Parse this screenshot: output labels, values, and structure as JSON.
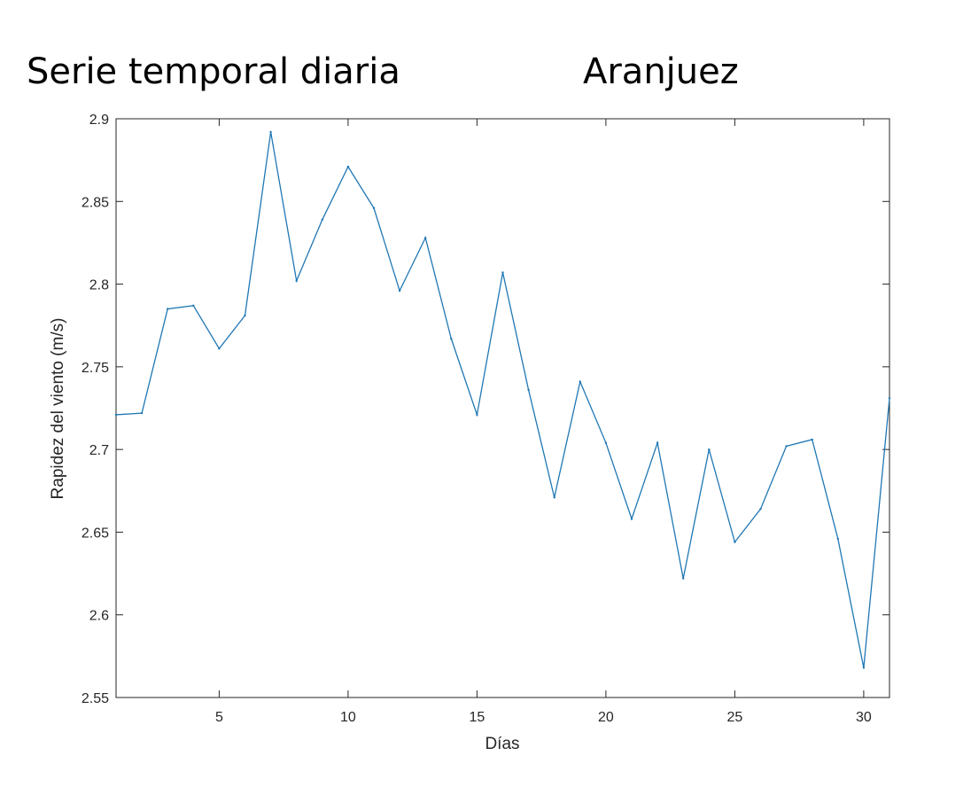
{
  "figure": {
    "title_left": "Serie temporal diaria",
    "title_right": "Aranjuez"
  },
  "colors": {
    "series": "#1f77b4",
    "axes": "#262626",
    "background": "#ffffff"
  },
  "chart_data": {
    "type": "line",
    "title": "Serie temporal diaria",
    "subtitle": "Aranjuez",
    "xlabel": "Días",
    "ylabel": "Rapidez del viento (m/s)",
    "xlim": [
      1,
      31
    ],
    "ylim": [
      2.55,
      2.9
    ],
    "xticks": [
      5,
      10,
      15,
      20,
      25,
      30
    ],
    "xtick_labels": [
      "5",
      "10",
      "15",
      "20",
      "25",
      "30"
    ],
    "yticks": [
      2.55,
      2.6,
      2.65,
      2.7,
      2.75,
      2.8,
      2.85,
      2.9
    ],
    "ytick_labels": [
      "2.55",
      "2.6",
      "2.65",
      "2.7",
      "2.75",
      "2.8",
      "2.85",
      "2.9"
    ],
    "grid": false,
    "box": true,
    "series": [
      {
        "x": [
          1,
          2,
          3,
          4,
          5,
          6,
          7,
          8,
          9,
          10,
          11,
          12,
          13,
          14,
          15,
          16,
          17,
          18,
          19,
          20,
          21,
          22,
          23,
          24,
          25,
          26,
          27,
          28,
          29,
          30,
          31
        ],
        "values": [
          2.721,
          2.722,
          2.785,
          2.787,
          2.761,
          2.781,
          2.892,
          2.802,
          2.839,
          2.871,
          2.846,
          2.796,
          2.828,
          2.767,
          2.721,
          2.807,
          2.736,
          2.671,
          2.741,
          2.704,
          2.658,
          2.704,
          2.622,
          2.7,
          2.644,
          2.664,
          2.702,
          2.706,
          2.646,
          2.568,
          2.731
        ]
      }
    ]
  }
}
